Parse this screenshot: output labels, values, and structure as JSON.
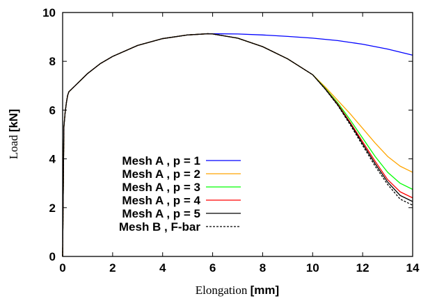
{
  "chart_data": {
    "type": "line",
    "title": "",
    "xlabel_main": "Elongation",
    "xlabel_unit": "[mm]",
    "ylabel_main": "Load",
    "ylabel_unit": "[kN]",
    "xlim": [
      0,
      14
    ],
    "ylim": [
      0,
      10
    ],
    "x_ticks": [
      "0",
      "2",
      "4",
      "6",
      "8",
      "10",
      "12",
      "14"
    ],
    "y_ticks": [
      "0",
      "2",
      "4",
      "6",
      "8",
      "10"
    ],
    "grid": false,
    "legend_position": "lower-left",
    "series": [
      {
        "name": "Mesh A , p = 1",
        "color": "#0000ff",
        "dash": "solid",
        "x": [
          0,
          0.05,
          0.1,
          0.15,
          0.2,
          0.25,
          0.3,
          0.5,
          1,
          1.5,
          2,
          3,
          4,
          5,
          5.8,
          6,
          7,
          8,
          9,
          10,
          11,
          12,
          13,
          14
        ],
        "y": [
          0,
          5.3,
          5.9,
          6.3,
          6.6,
          6.75,
          6.8,
          7.0,
          7.5,
          7.9,
          8.2,
          8.65,
          8.93,
          9.08,
          9.13,
          9.13,
          9.12,
          9.08,
          9.02,
          8.95,
          8.85,
          8.7,
          8.5,
          8.25
        ]
      },
      {
        "name": "Mesh A , p = 2",
        "color": "#ffa500",
        "dash": "solid",
        "x": [
          0,
          0.05,
          0.1,
          0.15,
          0.2,
          0.25,
          0.3,
          0.5,
          1,
          1.5,
          2,
          3,
          4,
          5,
          5.8,
          6,
          7,
          8,
          9,
          10,
          10.5,
          11,
          11.5,
          12,
          12.5,
          13,
          13.5,
          14
        ],
        "y": [
          0,
          5.3,
          5.9,
          6.3,
          6.6,
          6.75,
          6.8,
          7.0,
          7.5,
          7.9,
          8.2,
          8.65,
          8.93,
          9.08,
          9.13,
          9.12,
          8.95,
          8.6,
          8.1,
          7.45,
          6.95,
          6.4,
          5.85,
          5.25,
          4.65,
          4.1,
          3.7,
          3.45
        ]
      },
      {
        "name": "Mesh A , p = 3",
        "color": "#00ff00",
        "dash": "solid",
        "x": [
          0,
          0.05,
          0.1,
          0.15,
          0.2,
          0.25,
          0.3,
          0.5,
          1,
          1.5,
          2,
          3,
          4,
          5,
          5.8,
          6,
          7,
          8,
          9,
          10,
          10.5,
          11,
          11.5,
          12,
          12.5,
          13,
          13.5,
          14
        ],
        "y": [
          0,
          5.3,
          5.9,
          6.3,
          6.6,
          6.75,
          6.8,
          7.0,
          7.5,
          7.9,
          8.2,
          8.65,
          8.93,
          9.08,
          9.13,
          9.12,
          8.95,
          8.6,
          8.1,
          7.45,
          6.9,
          6.3,
          5.6,
          4.85,
          4.1,
          3.45,
          3.0,
          2.75
        ]
      },
      {
        "name": "Mesh A , p = 4",
        "color": "#ff0000",
        "dash": "solid",
        "x": [
          0,
          0.05,
          0.1,
          0.15,
          0.2,
          0.25,
          0.3,
          0.5,
          1,
          1.5,
          2,
          3,
          4,
          5,
          5.8,
          6,
          7,
          8,
          9,
          10,
          10.5,
          11,
          11.5,
          12,
          12.5,
          13,
          13.5,
          14
        ],
        "y": [
          0,
          5.3,
          5.9,
          6.3,
          6.6,
          6.75,
          6.8,
          7.0,
          7.5,
          7.9,
          8.2,
          8.65,
          8.93,
          9.08,
          9.13,
          9.12,
          8.95,
          8.6,
          8.1,
          7.45,
          6.88,
          6.25,
          5.5,
          4.7,
          3.9,
          3.15,
          2.65,
          2.4
        ]
      },
      {
        "name": "Mesh A , p = 5",
        "color": "#000000",
        "dash": "solid",
        "x": [
          0,
          0.05,
          0.1,
          0.15,
          0.2,
          0.25,
          0.3,
          0.5,
          1,
          1.5,
          2,
          3,
          4,
          5,
          5.8,
          6,
          7,
          8,
          9,
          10,
          10.5,
          11,
          11.5,
          12,
          12.5,
          13,
          13.5,
          14
        ],
        "y": [
          0,
          5.3,
          5.9,
          6.3,
          6.6,
          6.75,
          6.8,
          7.0,
          7.5,
          7.9,
          8.2,
          8.65,
          8.93,
          9.08,
          9.13,
          9.12,
          8.95,
          8.6,
          8.1,
          7.45,
          6.87,
          6.22,
          5.45,
          4.62,
          3.8,
          3.05,
          2.5,
          2.25
        ]
      },
      {
        "name": "Mesh B , F-bar",
        "color": "#000000",
        "dash": "dashed",
        "x": [
          0,
          0.05,
          0.1,
          0.15,
          0.2,
          0.25,
          0.3,
          0.5,
          1,
          1.5,
          2,
          3,
          4,
          5,
          5.8,
          6,
          7,
          8,
          9,
          10,
          10.5,
          11,
          11.5,
          12,
          12.5,
          13,
          13.5,
          14
        ],
        "y": [
          0,
          5.3,
          5.9,
          6.3,
          6.6,
          6.75,
          6.8,
          7.0,
          7.5,
          7.9,
          8.2,
          8.65,
          8.93,
          9.08,
          9.13,
          9.12,
          8.95,
          8.6,
          8.1,
          7.45,
          6.86,
          6.2,
          5.4,
          4.55,
          3.7,
          2.95,
          2.35,
          2.1
        ]
      }
    ]
  }
}
